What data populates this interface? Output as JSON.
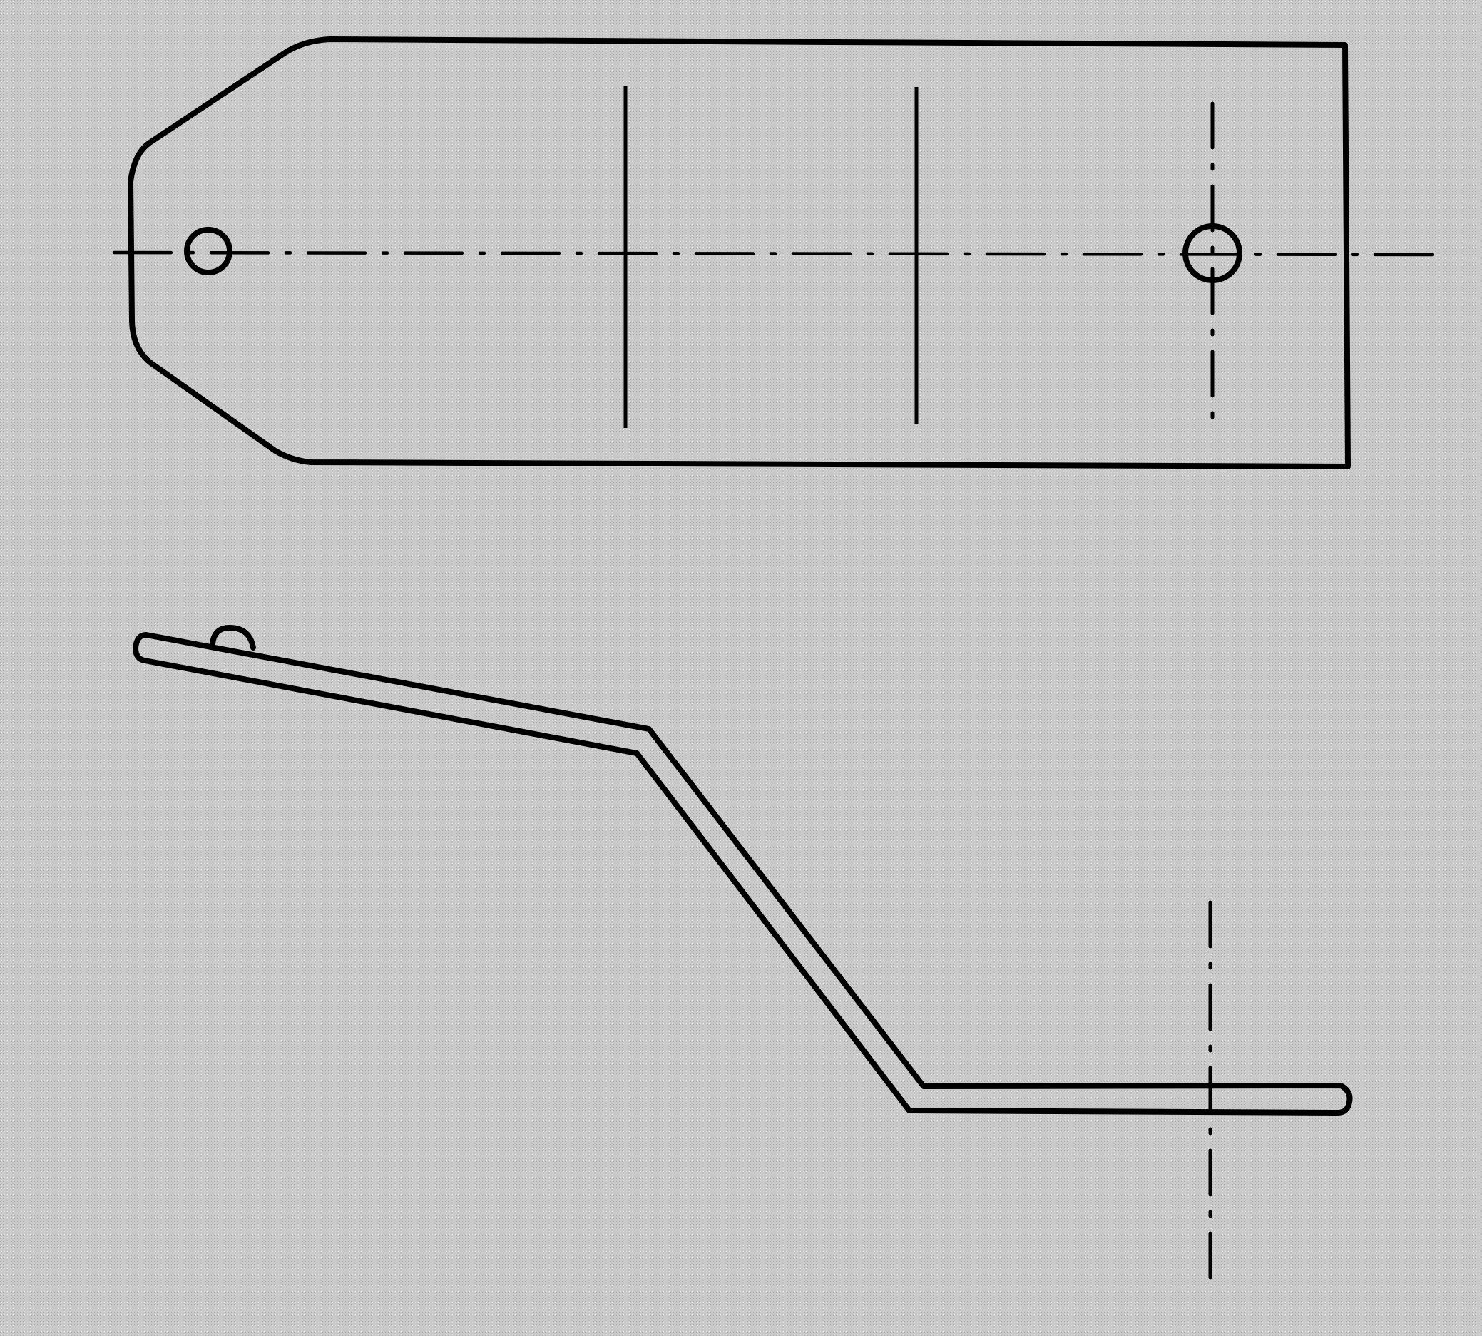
{
  "drawing": {
    "colors": {
      "background": "#c9c9c9",
      "ink": "#000000"
    },
    "views": [
      {
        "name": "plan-view",
        "features": [
          "flat-blank-outline",
          "bend-line",
          "bend-line",
          "small-hole",
          "large-hole",
          "horizontal-centerline",
          "vertical-centerline"
        ]
      },
      {
        "name": "side-view",
        "features": [
          "bent-strip-profile",
          "small-tab",
          "vertical-centerline"
        ]
      }
    ]
  }
}
